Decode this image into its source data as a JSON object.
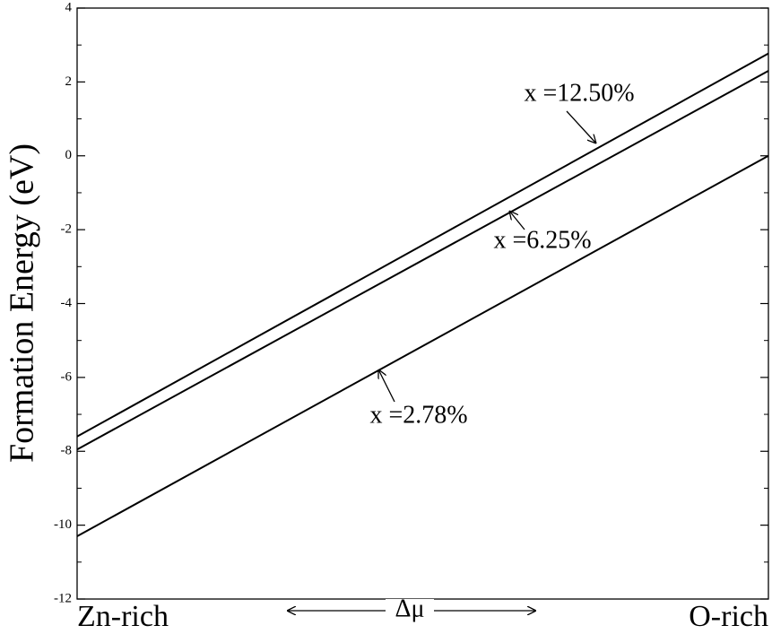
{
  "chart_data": {
    "type": "line",
    "ylabel": "Formation Energy (eV)",
    "xlabel": "Δμ",
    "categories": [
      "Zn-rich",
      "O-rich"
    ],
    "series": [
      {
        "name": "x =12.50%",
        "color": "#000000",
        "values": [
          -7.6,
          2.77
        ]
      },
      {
        "name": "x =6.25%",
        "color": "#000000",
        "values": [
          -7.95,
          2.3
        ]
      },
      {
        "name": "x =2.78%",
        "color": "#000000",
        "values": [
          -10.3,
          0
        ]
      }
    ],
    "ylim": [
      -12,
      4
    ],
    "yticks": [
      -12,
      -10,
      -8,
      -6,
      -4,
      -2,
      0,
      2,
      4
    ],
    "grid": false
  }
}
